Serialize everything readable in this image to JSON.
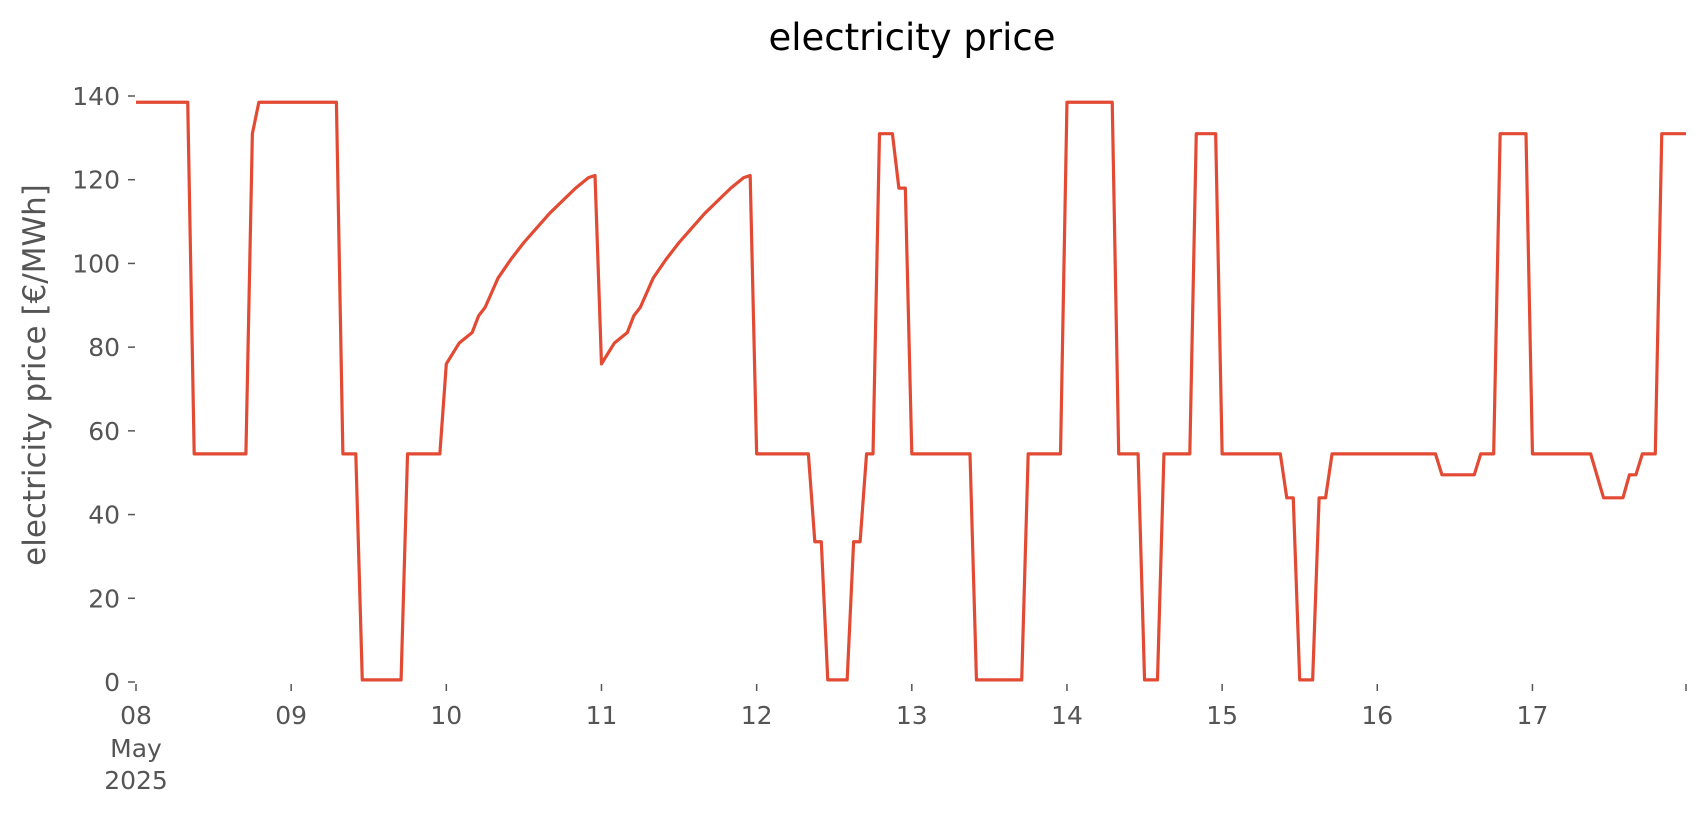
{
  "chart_data": {
    "type": "line",
    "title": "electricity price",
    "xlabel": "",
    "ylabel": "electricity price [€/MWh]",
    "ylim": [
      0,
      140
    ],
    "xlim": [
      "2025-05-08T00:00",
      "2025-05-17T23:45"
    ],
    "grid": false,
    "legend": "none",
    "line_color": "#e24a33",
    "y_ticks": [
      0,
      20,
      40,
      60,
      80,
      100,
      120,
      140
    ],
    "x_ticks": [
      {
        "x": "2025-05-08T00:00",
        "label": "08",
        "sub": [
          "May",
          "2025"
        ]
      },
      {
        "x": "2025-05-09T00:00",
        "label": "09"
      },
      {
        "x": "2025-05-10T00:00",
        "label": "10"
      },
      {
        "x": "2025-05-11T00:00",
        "label": "11"
      },
      {
        "x": "2025-05-12T00:00",
        "label": "12"
      },
      {
        "x": "2025-05-13T00:00",
        "label": "13"
      },
      {
        "x": "2025-05-14T00:00",
        "label": "14"
      },
      {
        "x": "2025-05-15T00:00",
        "label": "15"
      },
      {
        "x": "2025-05-16T00:00",
        "label": "16"
      },
      {
        "x": "2025-05-17T00:00",
        "label": "17"
      },
      {
        "x": "2025-05-17T23:45",
        "label": ""
      }
    ],
    "series": [
      {
        "name": "",
        "points": [
          [
            "2025-05-08T00:00",
            138.5
          ],
          [
            "2025-05-08T08:00",
            138.5
          ],
          [
            "2025-05-08T09:00",
            54.5
          ],
          [
            "2025-05-08T17:00",
            54.5
          ],
          [
            "2025-05-08T18:00",
            131
          ],
          [
            "2025-05-08T19:00",
            138.5
          ],
          [
            "2025-05-09T07:00",
            138.5
          ],
          [
            "2025-05-09T08:00",
            54.5
          ],
          [
            "2025-05-09T10:00",
            54.5
          ],
          [
            "2025-05-09T11:00",
            0.5
          ],
          [
            "2025-05-09T17:00",
            0.5
          ],
          [
            "2025-05-09T18:00",
            54.5
          ],
          [
            "2025-05-09T23:00",
            54.5
          ],
          [
            "2025-05-10T00:00",
            76
          ],
          [
            "2025-05-10T02:00",
            81
          ],
          [
            "2025-05-10T04:00",
            83.5
          ],
          [
            "2025-05-10T05:00",
            87.5
          ],
          [
            "2025-05-10T06:00",
            89.5
          ],
          [
            "2025-05-10T07:00",
            93
          ],
          [
            "2025-05-10T08:00",
            96.5
          ],
          [
            "2025-05-10T10:00",
            101
          ],
          [
            "2025-05-10T12:00",
            105
          ],
          [
            "2025-05-10T14:00",
            108.5
          ],
          [
            "2025-05-10T16:00",
            112
          ],
          [
            "2025-05-10T18:00",
            115
          ],
          [
            "2025-05-10T20:00",
            118
          ],
          [
            "2025-05-10T22:00",
            120.5
          ],
          [
            "2025-05-10T23:00",
            121
          ],
          [
            "2025-05-11T00:00",
            76
          ],
          [
            "2025-05-11T02:00",
            81
          ],
          [
            "2025-05-11T04:00",
            83.5
          ],
          [
            "2025-05-11T05:00",
            87.5
          ],
          [
            "2025-05-11T06:00",
            89.5
          ],
          [
            "2025-05-11T07:00",
            93
          ],
          [
            "2025-05-11T08:00",
            96.5
          ],
          [
            "2025-05-11T10:00",
            101
          ],
          [
            "2025-05-11T12:00",
            105
          ],
          [
            "2025-05-11T14:00",
            108.5
          ],
          [
            "2025-05-11T16:00",
            112
          ],
          [
            "2025-05-11T18:00",
            115
          ],
          [
            "2025-05-11T20:00",
            118
          ],
          [
            "2025-05-11T22:00",
            120.5
          ],
          [
            "2025-05-11T23:00",
            121
          ],
          [
            "2025-05-12T00:00",
            54.5
          ],
          [
            "2025-05-12T08:00",
            54.5
          ],
          [
            "2025-05-12T09:00",
            33.5
          ],
          [
            "2025-05-12T10:00",
            33.5
          ],
          [
            "2025-05-12T11:00",
            0.5
          ],
          [
            "2025-05-12T14:00",
            0.5
          ],
          [
            "2025-05-12T15:00",
            33.5
          ],
          [
            "2025-05-12T16:00",
            33.5
          ],
          [
            "2025-05-12T17:00",
            54.5
          ],
          [
            "2025-05-12T18:00",
            54.5
          ],
          [
            "2025-05-12T19:00",
            131
          ],
          [
            "2025-05-12T21:00",
            131
          ],
          [
            "2025-05-12T22:00",
            118
          ],
          [
            "2025-05-12T23:00",
            118
          ],
          [
            "2025-05-13T00:00",
            54.5
          ],
          [
            "2025-05-13T09:00",
            54.5
          ],
          [
            "2025-05-13T10:00",
            0.5
          ],
          [
            "2025-05-13T17:00",
            0.5
          ],
          [
            "2025-05-13T18:00",
            54.5
          ],
          [
            "2025-05-13T23:00",
            54.5
          ],
          [
            "2025-05-14T00:00",
            138.5
          ],
          [
            "2025-05-14T07:00",
            138.5
          ],
          [
            "2025-05-14T08:00",
            54.5
          ],
          [
            "2025-05-14T11:00",
            54.5
          ],
          [
            "2025-05-14T12:00",
            0.5
          ],
          [
            "2025-05-14T14:00",
            0.5
          ],
          [
            "2025-05-14T15:00",
            54.5
          ],
          [
            "2025-05-14T19:00",
            54.5
          ],
          [
            "2025-05-14T20:00",
            131
          ],
          [
            "2025-05-14T23:00",
            131
          ],
          [
            "2025-05-15T00:00",
            54.5
          ],
          [
            "2025-05-15T09:00",
            54.5
          ],
          [
            "2025-05-15T10:00",
            44
          ],
          [
            "2025-05-15T11:00",
            44
          ],
          [
            "2025-05-15T12:00",
            0.5
          ],
          [
            "2025-05-15T14:00",
            0.5
          ],
          [
            "2025-05-15T15:00",
            44
          ],
          [
            "2025-05-15T16:00",
            44
          ],
          [
            "2025-05-15T17:00",
            54.5
          ],
          [
            "2025-05-16T09:00",
            54.5
          ],
          [
            "2025-05-16T10:00",
            49.5
          ],
          [
            "2025-05-16T15:00",
            49.5
          ],
          [
            "2025-05-16T16:00",
            54.5
          ],
          [
            "2025-05-16T18:00",
            54.5
          ],
          [
            "2025-05-16T19:00",
            131
          ],
          [
            "2025-05-16T23:00",
            131
          ],
          [
            "2025-05-17T00:00",
            54.5
          ],
          [
            "2025-05-17T09:00",
            54.5
          ],
          [
            "2025-05-17T11:00",
            44
          ],
          [
            "2025-05-17T14:00",
            44
          ],
          [
            "2025-05-17T15:00",
            49.5
          ],
          [
            "2025-05-17T16:00",
            49.5
          ],
          [
            "2025-05-17T17:00",
            54.5
          ],
          [
            "2025-05-17T19:00",
            54.5
          ],
          [
            "2025-05-17T20:00",
            131
          ],
          [
            "2025-05-17T23:45",
            131
          ]
        ]
      }
    ]
  }
}
